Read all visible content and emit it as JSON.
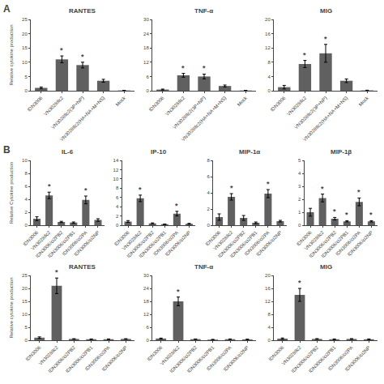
{
  "chart_data": [
    {
      "type": "bar",
      "title": "RANTES",
      "ylabel": "Relative cytokine production",
      "categories": [
        "IDN3006",
        "VN3028Ilc2",
        "VN3028Ilc2(3P+NP)",
        "VN3028Ilc2(HA+NA+M+NS)",
        "Mock"
      ],
      "values": [
        1.0,
        11.0,
        9.0,
        3.5,
        0.1
      ],
      "errors": [
        0.3,
        1.2,
        1.0,
        0.5,
        0.05
      ],
      "color": "#606060",
      "ylim": [
        0,
        25
      ],
      "yticks": [
        0,
        5,
        10,
        15,
        20,
        25
      ],
      "grid": false,
      "annotations": [
        {
          "category": "VN3028Ilc2",
          "text": "*"
        },
        {
          "category": "VN3028Ilc2(3P+NP)",
          "text": "*"
        }
      ]
    },
    {
      "type": "bar",
      "title": "TNF-α",
      "categories": [
        "IDN3006",
        "VN3028Ilc2",
        "VN3028Ilc2(3P+NP)",
        "VN3028Ilc2(HA+NA+M+NS)",
        "Mock"
      ],
      "values": [
        0.5,
        6.5,
        6.0,
        2.0,
        0.1
      ],
      "errors": [
        0.2,
        0.8,
        1.0,
        0.4,
        0.05
      ],
      "color": "#606060",
      "ylim": [
        0,
        30
      ],
      "yticks": [
        0,
        6,
        12,
        18,
        24,
        30
      ],
      "grid": false,
      "annotations": [
        {
          "category": "VN3028Ilc2",
          "text": "*"
        },
        {
          "category": "VN3028Ilc2(3P+NP)",
          "text": "*"
        }
      ]
    },
    {
      "type": "bar",
      "title": "MIG",
      "categories": [
        "IDN3006",
        "VN3028Ilc2",
        "VN3028Ilc2(3P+NP)",
        "VN3028Ilc2(HA+NA+M+NS)",
        "Mock"
      ],
      "values": [
        1.0,
        7.5,
        10.5,
        2.8,
        0.1
      ],
      "errors": [
        0.5,
        1.0,
        2.5,
        0.5,
        0.05
      ],
      "color": "#606060",
      "ylim": [
        0,
        20
      ],
      "yticks": [
        0,
        4,
        8,
        12,
        16,
        20
      ],
      "grid": false,
      "annotations": [
        {
          "category": "VN3028Ilc2",
          "text": "*"
        },
        {
          "category": "VN3028Ilc2(3P+NP)",
          "text": "*"
        }
      ]
    },
    {
      "type": "bar",
      "title": "IL-6",
      "ylabel": "Relative Cytokine production",
      "categories": [
        "IDN3006",
        "VN3028Ilc2",
        "IDN3006/ci2PB2",
        "IDN3006/ci2PB1",
        "IDN3006/ci2PA",
        "IDN3006/ci2NP"
      ],
      "values": [
        1.0,
        4.6,
        0.5,
        0.4,
        3.9,
        0.8
      ],
      "errors": [
        0.3,
        0.5,
        0.1,
        0.1,
        0.6,
        0.2
      ],
      "color": "#606060",
      "ylim": [
        0,
        10
      ],
      "yticks": [
        0,
        2,
        4,
        6,
        8,
        10
      ],
      "grid": false,
      "annotations": [
        {
          "category": "VN3028Ilc2",
          "text": "*"
        },
        {
          "category": "IDN3006/ci2PA",
          "text": "*"
        }
      ]
    },
    {
      "type": "bar",
      "title": "IP-10",
      "categories": [
        "IDN3006",
        "VN3028Ilc2",
        "IDN3006/ci2PB2",
        "IDN3006/ci2PB1",
        "IDN3006/ci2PA",
        "IDN3006/ci2NP"
      ],
      "values": [
        0.8,
        5.8,
        0.4,
        0.2,
        2.5,
        0.3
      ],
      "errors": [
        0.2,
        0.7,
        0.1,
        0.05,
        0.5,
        0.1
      ],
      "color": "#606060",
      "ylim": [
        0,
        14
      ],
      "yticks": [
        0,
        2,
        4,
        6,
        8,
        10,
        12,
        14
      ],
      "grid": false,
      "annotations": [
        {
          "category": "VN3028Ilc2",
          "text": "*"
        },
        {
          "category": "IDN3006/ci2PA",
          "text": "*"
        }
      ]
    },
    {
      "type": "bar",
      "title": "MIP-1α",
      "categories": [
        "IDN3006",
        "VN3028Ilc2",
        "IDN3006/ci2PB2",
        "IDN3006/ci2PB1",
        "IDN3006/ci2PA",
        "IDN3006/ci2NP"
      ],
      "values": [
        1.0,
        3.5,
        0.9,
        0.3,
        3.9,
        0.5
      ],
      "errors": [
        0.4,
        0.4,
        0.3,
        0.1,
        0.5,
        0.1
      ],
      "color": "#606060",
      "ylim": [
        0,
        8
      ],
      "yticks": [
        0,
        2,
        4,
        6,
        8
      ],
      "grid": false,
      "annotations": [
        {
          "category": "VN3028Ilc2",
          "text": "*"
        },
        {
          "category": "IDN3006/ci2PA",
          "text": "*"
        }
      ]
    },
    {
      "type": "bar",
      "title": "MIP-1β",
      "categories": [
        "IDN3006",
        "VN3028Ilc2",
        "IDN3006/ci2PB2",
        "IDN3006/ci2PB1",
        "IDN3006/ci2PA",
        "IDN3006/ci2NP"
      ],
      "values": [
        1.0,
        2.1,
        0.5,
        0.3,
        1.8,
        0.3
      ],
      "errors": [
        0.3,
        0.3,
        0.1,
        0.05,
        0.3,
        0.05
      ],
      "color": "#606060",
      "ylim": [
        0,
        5
      ],
      "yticks": [
        0,
        1,
        2,
        3,
        4,
        5
      ],
      "grid": false,
      "annotations": [
        {
          "category": "VN3028Ilc2",
          "text": "*"
        },
        {
          "category": "IDN3006/ci2PB2",
          "text": "*"
        },
        {
          "category": "IDN3006/ci2PB1",
          "text": "*"
        },
        {
          "category": "IDN3006/ci2PA",
          "text": "*"
        },
        {
          "category": "IDN3006/ci2NP",
          "text": "*"
        }
      ]
    },
    {
      "type": "bar",
      "title": "RANTES",
      "ylabel": "Relative cytokine production",
      "categories": [
        "IDN3006",
        "VN3028Ilc2",
        "IDN3006/ci2PB2",
        "IDN3006/ci2PB1",
        "IDN3006/ci2PA",
        "IDN3006/ci2NP"
      ],
      "values": [
        1.0,
        21.0,
        0.5,
        0.4,
        0.4,
        0.5
      ],
      "errors": [
        0.3,
        3.0,
        0.1,
        0.1,
        0.1,
        0.1
      ],
      "color": "#606060",
      "ylim": [
        0,
        25
      ],
      "yticks": [
        0,
        5,
        10,
        15,
        20,
        25
      ],
      "grid": false,
      "annotations": [
        {
          "category": "VN3028Ilc2",
          "text": "*"
        }
      ]
    },
    {
      "type": "bar",
      "title": "TNF-α",
      "categories": [
        "IDN3006",
        "VN3028Ilc2",
        "IDN3006/ci2PB2",
        "IDN3006/ci2PB1",
        "IDN3006/ci2PA",
        "IDN3006/ci2NP"
      ],
      "values": [
        0.8,
        18.0,
        0.5,
        0.3,
        0.5,
        0.4
      ],
      "errors": [
        0.2,
        2.0,
        0.1,
        0.1,
        0.1,
        0.1
      ],
      "color": "#606060",
      "ylim": [
        0,
        30
      ],
      "yticks": [
        0,
        6,
        12,
        18,
        24,
        30
      ],
      "grid": false,
      "annotations": [
        {
          "category": "VN3028Ilc2",
          "text": "*"
        }
      ]
    },
    {
      "type": "bar",
      "title": "MIG",
      "categories": [
        "IDN3006",
        "VN3028Ilc2",
        "IDN3006/ci2PB2",
        "IDN3006/ci2PB1",
        "IDN3006/ci2PA",
        "IDN3006/ci2NP"
      ],
      "values": [
        0.5,
        14.0,
        0.4,
        0.3,
        0.4,
        0.3
      ],
      "errors": [
        0.2,
        2.0,
        0.1,
        0.1,
        0.1,
        0.1
      ],
      "color": "#606060",
      "ylim": [
        0,
        20
      ],
      "yticks": [
        0,
        4,
        8,
        12,
        16,
        20
      ],
      "grid": false,
      "annotations": [
        {
          "category": "VN3028Ilc2",
          "text": "*"
        }
      ]
    }
  ],
  "annotations": [
    {
      "text": "A"
    },
    {
      "text": "B"
    }
  ]
}
